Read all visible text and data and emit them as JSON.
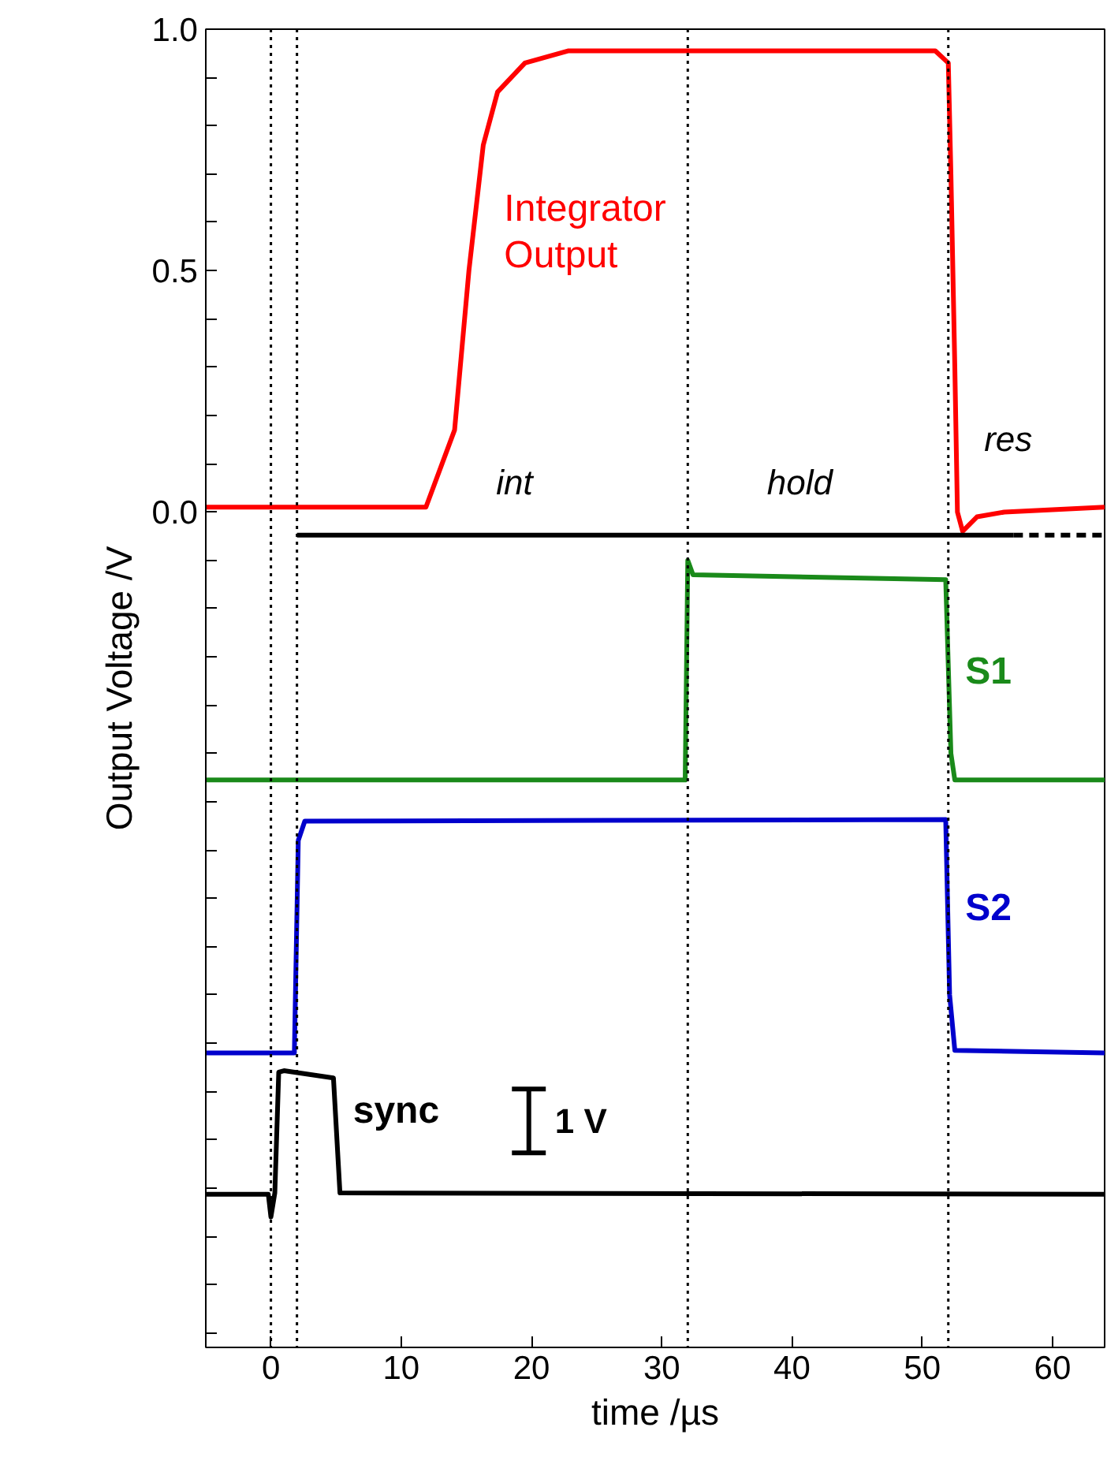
{
  "chart_data": {
    "type": "line",
    "xlabel": "time /µs",
    "ylabel": "Output Voltage /V",
    "xlim": [
      -5,
      64
    ],
    "ylim": [
      -1.73,
      1.0
    ],
    "xticks": [
      0,
      10,
      20,
      30,
      40,
      50,
      60
    ],
    "yticks": [
      {
        "value": -1.7,
        "label": null
      },
      {
        "value": -1.6,
        "label": null
      },
      {
        "value": -1.5,
        "label": null
      },
      {
        "value": -1.4,
        "label": null
      },
      {
        "value": -1.3,
        "label": null
      },
      {
        "value": -1.2,
        "label": null
      },
      {
        "value": -1.1,
        "label": null
      },
      {
        "value": -1.0,
        "label": null
      },
      {
        "value": -0.9,
        "label": null
      },
      {
        "value": -0.8,
        "label": null
      },
      {
        "value": -0.7,
        "label": null
      },
      {
        "value": -0.6,
        "label": null
      },
      {
        "value": -0.5,
        "label": null
      },
      {
        "value": -0.4,
        "label": null
      },
      {
        "value": -0.3,
        "label": null
      },
      {
        "value": -0.2,
        "label": null
      },
      {
        "value": -0.1,
        "label": null
      },
      {
        "value": 0.0,
        "label": "0.0"
      },
      {
        "value": 0.1,
        "label": null
      },
      {
        "value": 0.2,
        "label": null
      },
      {
        "value": 0.3,
        "label": null
      },
      {
        "value": 0.4,
        "label": null
      },
      {
        "value": 0.5,
        "label": "0.5"
      },
      {
        "value": 0.6,
        "label": null
      },
      {
        "value": 0.7,
        "label": null
      },
      {
        "value": 0.8,
        "label": null
      },
      {
        "value": 0.9,
        "label": null
      },
      {
        "value": 1.0,
        "label": "1.0"
      }
    ],
    "grid": false,
    "series": [
      {
        "name": "Integrator Output",
        "color": "#ff0000",
        "x": [
          -5,
          11.9,
          14.1,
          15.2,
          16.3,
          17.4,
          19.5,
          22.8,
          51.0,
          52.0,
          52.2,
          52.5,
          52.7,
          53.1,
          54.2,
          56.3,
          64
        ],
        "values": [
          0.01,
          0.01,
          0.17,
          0.5,
          0.76,
          0.87,
          0.93,
          0.955,
          0.955,
          0.93,
          0.7,
          0.3,
          0.0,
          -0.04,
          -0.01,
          0.0,
          0.01
        ]
      },
      {
        "name": "S1",
        "color": "#1a8a1a",
        "x": [
          -5,
          31.8,
          32.0,
          32.4,
          51.8,
          52.2,
          52.5,
          64
        ],
        "values": [
          -0.555,
          -0.555,
          -0.1,
          -0.13,
          -0.14,
          -0.5,
          -0.555,
          -0.555
        ]
      },
      {
        "name": "S2",
        "color": "#0000cc",
        "x": [
          -5,
          1.8,
          2.1,
          2.6,
          51.8,
          52.1,
          52.5,
          64
        ],
        "values": [
          -1.12,
          -1.12,
          -0.68,
          -0.64,
          -0.637,
          -1.0,
          -1.115,
          -1.12
        ]
      },
      {
        "name": "sync",
        "color": "#000000",
        "x": [
          -5,
          -0.2,
          0,
          0.3,
          0.6,
          1,
          4.8,
          5.3,
          64
        ],
        "values": [
          -1.413,
          -1.413,
          -1.46,
          -1.41,
          -1.16,
          -1.157,
          -1.172,
          -1.41,
          -1.413
        ]
      },
      {
        "color": "#000000",
        "x": [
          2,
          32,
          52,
          57
        ],
        "values": [
          -0.048,
          -0.048,
          -0.048,
          -0.048
        ]
      },
      {
        "color": "#000000",
        "line_style": "dashed",
        "x": [
          57,
          64
        ],
        "values": [
          -0.048,
          -0.048
        ]
      }
    ],
    "ref_lines": [
      {
        "axis": "x",
        "value": 0,
        "color": "#000000",
        "line_style": "dotted"
      },
      {
        "axis": "x",
        "value": 2,
        "color": "#000000",
        "line_style": "dotted"
      },
      {
        "axis": "x",
        "value": 32,
        "color": "#000000",
        "line_style": "dotted"
      },
      {
        "axis": "x",
        "value": 52,
        "color": "#000000",
        "line_style": "dotted"
      }
    ],
    "annotations": [
      "int",
      "hold",
      "res",
      "1 V"
    ]
  }
}
